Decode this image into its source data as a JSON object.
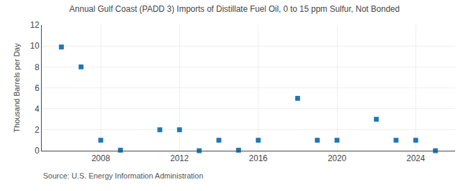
{
  "chart_data": {
    "type": "scatter",
    "title": "Annual Gulf Coast (PADD 3) Imports of Distillate Fuel Oil, 0 to 15 ppm Sulfur, Not Bonded",
    "y_label": "Thousand Barrels per Day",
    "annotations": [
      "Source: U.S. Energy Information Administration"
    ],
    "x": [
      2006,
      2007,
      2008,
      2009,
      2011,
      2012,
      2013,
      2014,
      2015,
      2016,
      2018,
      2019,
      2020,
      2022,
      2023,
      2024,
      2025
    ],
    "values": [
      9.9,
      8.0,
      1.0,
      0.05,
      2.0,
      2.0,
      0.0,
      1.0,
      0.05,
      1.0,
      5.0,
      1.0,
      1.0,
      3.0,
      1.0,
      1.0,
      0.0
    ],
    "marker": "square",
    "xlim": [
      2005.0,
      2026.0
    ],
    "xticks": [
      2008,
      2012,
      2016,
      2020,
      2024
    ],
    "ylim": [
      0,
      12
    ],
    "yticks": [
      0,
      2,
      4,
      6,
      8,
      10,
      12
    ],
    "grid": true
  }
}
